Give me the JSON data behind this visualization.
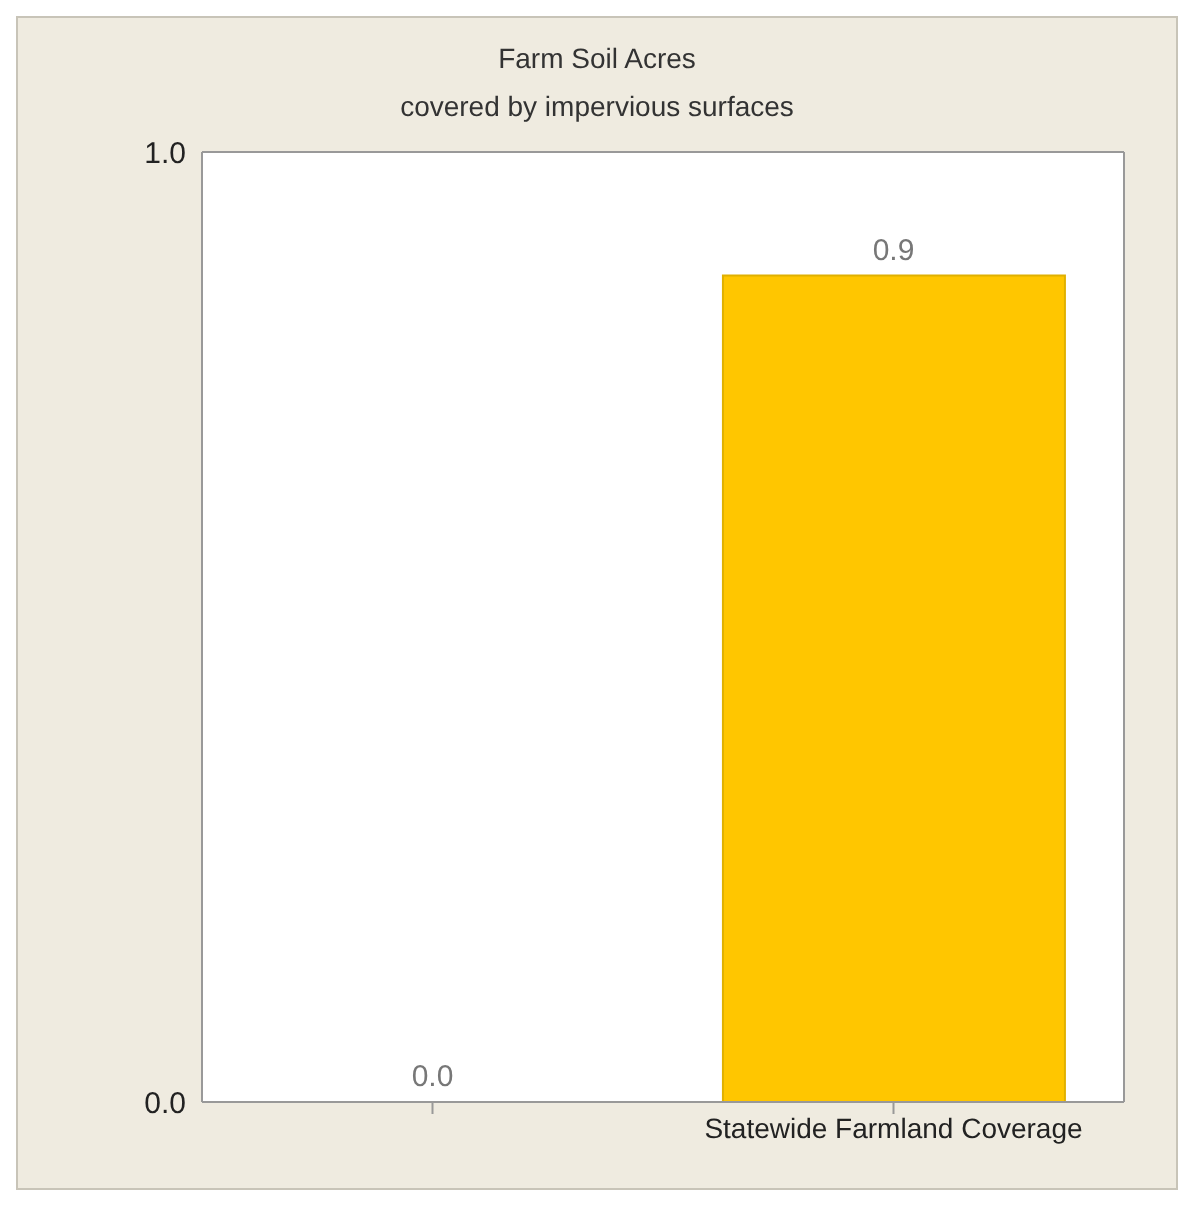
{
  "chart_data": {
    "type": "bar",
    "title": "Farm Soil Acres",
    "subtitle": "covered by impervious surfaces",
    "categories": [
      null,
      "Statewide Farmland Coverage"
    ],
    "values": [
      0,
      0.87
    ],
    "value_labels": [
      "0.0",
      "0.9"
    ],
    "color": "#ffc600",
    "ylim": [
      0,
      1
    ],
    "yticks": [
      {
        "value": 0,
        "label": "0.0"
      },
      {
        "value": 1,
        "label": "1.0"
      }
    ],
    "grid": false
  }
}
